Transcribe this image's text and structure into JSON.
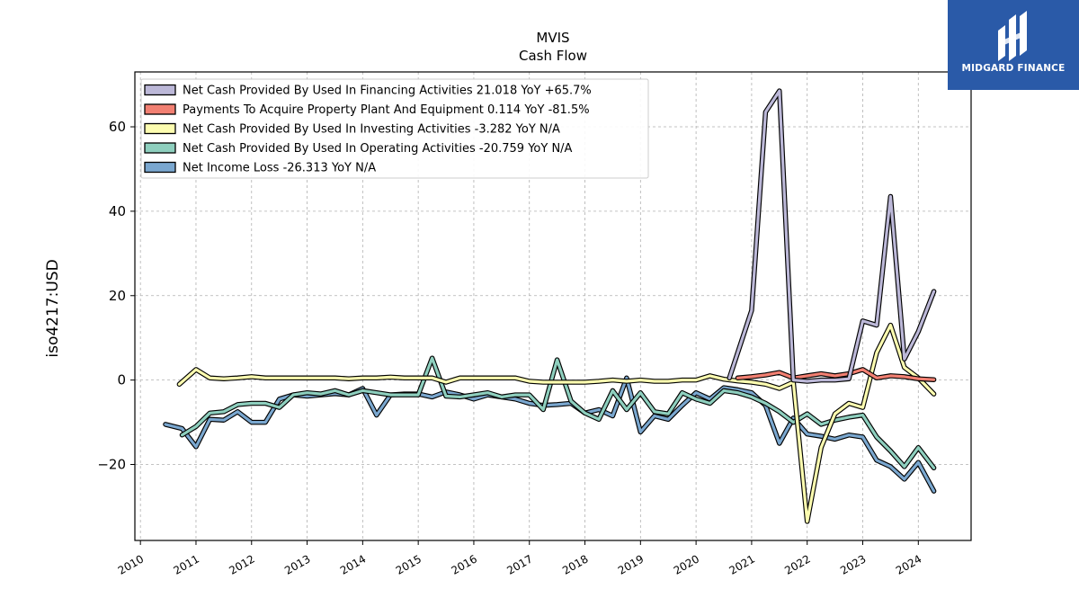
{
  "brand": {
    "name": "MIDGARD FINANCE",
    "color": "#2a5aa8"
  },
  "chart_data": {
    "type": "line",
    "title": "MVIS",
    "subtitle": "Cash Flow",
    "ylabel": "iso4217:USD",
    "xlabel": "",
    "xlim": [
      2009.9,
      2024.95
    ],
    "ylim": [
      -38,
      73
    ],
    "yticks": [
      -20,
      0,
      20,
      40,
      60
    ],
    "xticks": [
      2010,
      2011,
      2012,
      2013,
      2014,
      2015,
      2016,
      2017,
      2018,
      2019,
      2020,
      2021,
      2022,
      2023,
      2024
    ],
    "grid": true,
    "legend_position": "top-left",
    "series": [
      {
        "name": "Net Income Loss",
        "legend": "Net Income Loss  -26.313 YoY N/A",
        "color": "#7aa7cf",
        "points": [
          [
            2010.45,
            -10.5
          ],
          [
            2010.75,
            -11.5
          ],
          [
            2011.0,
            -15.8
          ],
          [
            2011.25,
            -9.3
          ],
          [
            2011.5,
            -9.5
          ],
          [
            2011.75,
            -7.5
          ],
          [
            2012.0,
            -10.0
          ],
          [
            2012.25,
            -10.0
          ],
          [
            2012.5,
            -4.5
          ],
          [
            2012.75,
            -3.5
          ],
          [
            2013.0,
            -3.8
          ],
          [
            2013.25,
            -3.5
          ],
          [
            2013.5,
            -3.2
          ],
          [
            2013.75,
            -3.5
          ],
          [
            2014.0,
            -2.0
          ],
          [
            2014.25,
            -8.3
          ],
          [
            2014.5,
            -3.5
          ],
          [
            2014.75,
            -3.3
          ],
          [
            2015.0,
            -3.3
          ],
          [
            2015.25,
            -4.0
          ],
          [
            2015.5,
            -2.8
          ],
          [
            2015.75,
            -3.5
          ],
          [
            2016.0,
            -4.5
          ],
          [
            2016.25,
            -3.5
          ],
          [
            2016.5,
            -4.0
          ],
          [
            2016.75,
            -4.5
          ],
          [
            2017.0,
            -5.5
          ],
          [
            2017.25,
            -6.0
          ],
          [
            2017.5,
            -5.8
          ],
          [
            2017.75,
            -5.5
          ],
          [
            2018.0,
            -7.8
          ],
          [
            2018.25,
            -7.0
          ],
          [
            2018.5,
            -8.5
          ],
          [
            2018.75,
            0.5
          ],
          [
            2019.0,
            -12.3
          ],
          [
            2019.25,
            -8.5
          ],
          [
            2019.5,
            -9.3
          ],
          [
            2019.75,
            -6.0
          ],
          [
            2020.0,
            -3.0
          ],
          [
            2020.25,
            -4.5
          ],
          [
            2020.5,
            -1.8
          ],
          [
            2020.75,
            -2.3
          ],
          [
            2021.0,
            -3.0
          ],
          [
            2021.25,
            -6.0
          ],
          [
            2021.5,
            -15.0
          ],
          [
            2021.75,
            -9.0
          ],
          [
            2022.0,
            -12.8
          ],
          [
            2022.25,
            -13.3
          ],
          [
            2022.5,
            -14.0
          ],
          [
            2022.75,
            -13.0
          ],
          [
            2023.0,
            -13.5
          ],
          [
            2023.25,
            -19.0
          ],
          [
            2023.5,
            -20.5
          ],
          [
            2023.75,
            -23.5
          ],
          [
            2024.0,
            -19.5
          ],
          [
            2024.28,
            -26.3
          ]
        ]
      },
      {
        "name": "Net Cash Provided By Used In Operating Activities",
        "legend": "Net Cash Provided By Used In Operating Activities  -20.759 YoY N/A",
        "color": "#8ecfbe",
        "points": [
          [
            2010.75,
            -13.0
          ],
          [
            2011.0,
            -11.0
          ],
          [
            2011.25,
            -7.8
          ],
          [
            2011.5,
            -7.5
          ],
          [
            2011.75,
            -5.8
          ],
          [
            2012.0,
            -5.5
          ],
          [
            2012.25,
            -5.5
          ],
          [
            2012.5,
            -6.5
          ],
          [
            2012.75,
            -3.5
          ],
          [
            2013.0,
            -3.0
          ],
          [
            2013.25,
            -3.3
          ],
          [
            2013.5,
            -2.5
          ],
          [
            2013.75,
            -3.5
          ],
          [
            2014.0,
            -2.5
          ],
          [
            2014.25,
            -3.0
          ],
          [
            2014.5,
            -3.5
          ],
          [
            2014.75,
            -3.5
          ],
          [
            2015.0,
            -3.5
          ],
          [
            2015.25,
            5.2
          ],
          [
            2015.5,
            -3.8
          ],
          [
            2015.75,
            -4.0
          ],
          [
            2016.0,
            -3.5
          ],
          [
            2016.25,
            -3.0
          ],
          [
            2016.5,
            -4.0
          ],
          [
            2016.75,
            -3.5
          ],
          [
            2017.0,
            -3.5
          ],
          [
            2017.25,
            -7.0
          ],
          [
            2017.5,
            4.8
          ],
          [
            2017.75,
            -5.0
          ],
          [
            2018.0,
            -7.8
          ],
          [
            2018.25,
            -9.3
          ],
          [
            2018.5,
            -2.5
          ],
          [
            2018.75,
            -7.0
          ],
          [
            2019.0,
            -3.0
          ],
          [
            2019.25,
            -7.5
          ],
          [
            2019.5,
            -8.0
          ],
          [
            2019.75,
            -3.0
          ],
          [
            2020.0,
            -4.5
          ],
          [
            2020.25,
            -5.5
          ],
          [
            2020.5,
            -2.5
          ],
          [
            2020.75,
            -3.0
          ],
          [
            2021.0,
            -4.0
          ],
          [
            2021.25,
            -5.5
          ],
          [
            2021.5,
            -7.5
          ],
          [
            2021.75,
            -10.0
          ],
          [
            2022.0,
            -8.0
          ],
          [
            2022.25,
            -10.5
          ],
          [
            2022.5,
            -9.5
          ],
          [
            2022.75,
            -8.8
          ],
          [
            2023.0,
            -8.3
          ],
          [
            2023.25,
            -13.5
          ],
          [
            2023.5,
            -16.8
          ],
          [
            2023.75,
            -20.5
          ],
          [
            2024.0,
            -16.0
          ],
          [
            2024.28,
            -20.8
          ]
        ]
      },
      {
        "name": "Net Cash Provided By Used In Investing Activities",
        "legend": "Net Cash Provided By Used In Investing Activities  -3.282 YoY N/A",
        "color": "#fdfdb0",
        "points": [
          [
            2010.7,
            -1.0
          ],
          [
            2011.0,
            2.5
          ],
          [
            2011.25,
            0.5
          ],
          [
            2011.5,
            0.3
          ],
          [
            2011.75,
            0.5
          ],
          [
            2012.0,
            0.8
          ],
          [
            2012.25,
            0.5
          ],
          [
            2012.5,
            0.5
          ],
          [
            2012.75,
            0.5
          ],
          [
            2013.0,
            0.5
          ],
          [
            2013.25,
            0.5
          ],
          [
            2013.5,
            0.5
          ],
          [
            2013.75,
            0.3
          ],
          [
            2014.0,
            0.5
          ],
          [
            2014.25,
            0.5
          ],
          [
            2014.5,
            0.7
          ],
          [
            2014.75,
            0.5
          ],
          [
            2015.0,
            0.5
          ],
          [
            2015.25,
            0.5
          ],
          [
            2015.5,
            -0.5
          ],
          [
            2015.75,
            0.5
          ],
          [
            2016.0,
            0.5
          ],
          [
            2016.25,
            0.5
          ],
          [
            2016.5,
            0.5
          ],
          [
            2016.75,
            0.5
          ],
          [
            2017.0,
            -0.3
          ],
          [
            2017.25,
            -0.5
          ],
          [
            2017.5,
            -0.5
          ],
          [
            2017.75,
            -0.5
          ],
          [
            2018.0,
            -0.5
          ],
          [
            2018.25,
            -0.3
          ],
          [
            2018.5,
            0.0
          ],
          [
            2018.75,
            -0.3
          ],
          [
            2019.0,
            0.0
          ],
          [
            2019.25,
            -0.3
          ],
          [
            2019.5,
            -0.3
          ],
          [
            2019.75,
            0.0
          ],
          [
            2020.0,
            0.0
          ],
          [
            2020.25,
            1.0
          ],
          [
            2020.5,
            0.2
          ],
          [
            2020.75,
            -0.2
          ],
          [
            2021.0,
            -0.5
          ],
          [
            2021.25,
            -1.0
          ],
          [
            2021.5,
            -2.0
          ],
          [
            2021.75,
            -0.5
          ],
          [
            2022.0,
            -33.5
          ],
          [
            2022.25,
            -16.0
          ],
          [
            2022.5,
            -8.0
          ],
          [
            2022.75,
            -5.5
          ],
          [
            2023.0,
            -6.5
          ],
          [
            2023.25,
            6.5
          ],
          [
            2023.5,
            13.0
          ],
          [
            2023.75,
            3.0
          ],
          [
            2024.0,
            0.5
          ],
          [
            2024.28,
            -3.3
          ]
        ]
      },
      {
        "name": "Payments To Acquire Property Plant And Equipment",
        "legend": "Payments To Acquire Property Plant And Equipment  0.114 YoY -81.5%",
        "color": "#f28072",
        "points": [
          [
            2020.75,
            0.5
          ],
          [
            2021.0,
            0.8
          ],
          [
            2021.25,
            1.2
          ],
          [
            2021.5,
            1.8
          ],
          [
            2021.75,
            0.5
          ],
          [
            2022.0,
            1.0
          ],
          [
            2022.25,
            1.5
          ],
          [
            2022.5,
            1.0
          ],
          [
            2022.75,
            1.5
          ],
          [
            2023.0,
            2.5
          ],
          [
            2023.25,
            0.5
          ],
          [
            2023.5,
            1.0
          ],
          [
            2023.75,
            0.8
          ],
          [
            2024.0,
            0.3
          ],
          [
            2024.28,
            0.1
          ]
        ]
      },
      {
        "name": "Net Cash Provided By Used In Financing Activities",
        "legend": "Net Cash Provided By Used In Financing Activities  21.018 YoY +65.7%",
        "color": "#bcb8d8",
        "points": [
          [
            2020.6,
            0.5
          ],
          [
            2021.0,
            16.5
          ],
          [
            2021.25,
            63.5
          ],
          [
            2021.5,
            68.5
          ],
          [
            2021.75,
            0.0
          ],
          [
            2022.0,
            -0.3
          ],
          [
            2022.25,
            0.0
          ],
          [
            2022.5,
            0.0
          ],
          [
            2022.75,
            0.3
          ],
          [
            2023.0,
            14.0
          ],
          [
            2023.25,
            13.0
          ],
          [
            2023.5,
            43.5
          ],
          [
            2023.75,
            5.0
          ],
          [
            2024.0,
            11.5
          ],
          [
            2024.28,
            21.0
          ]
        ]
      }
    ],
    "legend_order": [
      4,
      3,
      2,
      1,
      0
    ]
  }
}
